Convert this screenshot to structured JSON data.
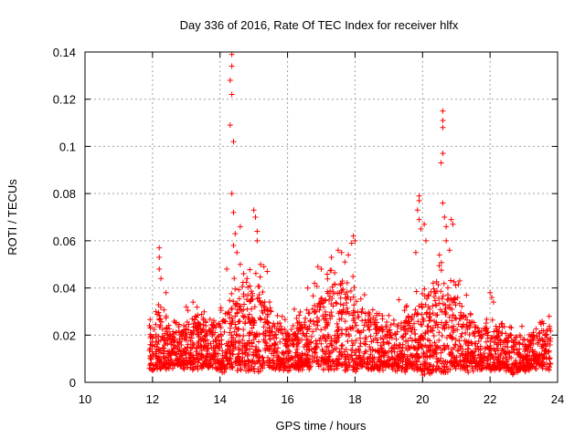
{
  "chart_data": {
    "type": "scatter",
    "title": "Day 336 of 2016, Rate Of TEC Index for receiver hlfx",
    "xlabel": "GPS time / hours",
    "ylabel": "ROTI / TECUs",
    "xlim": [
      10,
      24
    ],
    "ylim": [
      0,
      0.14
    ],
    "xticks": [
      "10",
      "12",
      "14",
      "16",
      "18",
      "20",
      "22",
      "24"
    ],
    "yticks": [
      "0",
      "0.02",
      "0.04",
      "0.06",
      "0.08",
      "0.1",
      "0.12",
      "0.14"
    ],
    "grid": true,
    "marker": "+",
    "color": "#ff0000",
    "series": [
      {
        "name": "ROTI",
        "envelope": {
          "x": [
            11.9,
            12.0,
            12.2,
            12.5,
            12.8,
            13.0,
            13.3,
            13.6,
            14.0,
            14.2,
            14.4,
            14.6,
            14.9,
            15.2,
            15.5,
            15.8,
            16.1,
            16.4,
            16.7,
            17.0,
            17.3,
            17.6,
            17.9,
            18.2,
            18.5,
            18.8,
            19.1,
            19.4,
            19.7,
            20.0,
            20.3,
            20.6,
            20.9,
            21.2,
            21.5,
            21.8,
            22.1,
            22.4,
            22.7,
            23.0,
            23.3,
            23.6,
            23.8
          ],
          "low": [
            0.006,
            0.004,
            0.005,
            0.005,
            0.006,
            0.005,
            0.005,
            0.006,
            0.004,
            0.004,
            0.004,
            0.004,
            0.004,
            0.004,
            0.005,
            0.005,
            0.004,
            0.005,
            0.005,
            0.004,
            0.004,
            0.004,
            0.004,
            0.005,
            0.005,
            0.005,
            0.005,
            0.004,
            0.004,
            0.003,
            0.003,
            0.003,
            0.004,
            0.004,
            0.004,
            0.005,
            0.005,
            0.005,
            0.003,
            0.004,
            0.005,
            0.005,
            0.005
          ],
          "high": [
            0.031,
            0.026,
            0.034,
            0.028,
            0.026,
            0.031,
            0.033,
            0.03,
            0.031,
            0.036,
            0.045,
            0.046,
            0.048,
            0.045,
            0.033,
            0.029,
            0.026,
            0.031,
            0.038,
            0.046,
            0.048,
            0.05,
            0.047,
            0.04,
            0.033,
            0.029,
            0.028,
            0.031,
            0.036,
            0.043,
            0.048,
            0.052,
            0.047,
            0.038,
            0.03,
            0.027,
            0.027,
            0.026,
            0.024,
            0.024,
            0.025,
            0.026,
            0.027
          ]
        },
        "spikes": [
          {
            "x": 12.2,
            "y": 0.057
          },
          {
            "x": 12.2,
            "y": 0.053
          },
          {
            "x": 12.2,
            "y": 0.048
          },
          {
            "x": 12.25,
            "y": 0.044
          },
          {
            "x": 12.1,
            "y": 0.03
          },
          {
            "x": 12.4,
            "y": 0.038
          },
          {
            "x": 14.35,
            "y": 0.139
          },
          {
            "x": 14.35,
            "y": 0.134
          },
          {
            "x": 14.3,
            "y": 0.128
          },
          {
            "x": 14.35,
            "y": 0.122
          },
          {
            "x": 14.3,
            "y": 0.109
          },
          {
            "x": 14.4,
            "y": 0.102
          },
          {
            "x": 14.35,
            "y": 0.08
          },
          {
            "x": 14.4,
            "y": 0.072
          },
          {
            "x": 14.45,
            "y": 0.063
          },
          {
            "x": 14.4,
            "y": 0.058
          },
          {
            "x": 14.5,
            "y": 0.055
          },
          {
            "x": 14.2,
            "y": 0.048
          },
          {
            "x": 14.6,
            "y": 0.05
          },
          {
            "x": 14.7,
            "y": 0.046
          },
          {
            "x": 14.8,
            "y": 0.044
          },
          {
            "x": 15.0,
            "y": 0.073
          },
          {
            "x": 15.05,
            "y": 0.07
          },
          {
            "x": 15.1,
            "y": 0.064
          },
          {
            "x": 15.1,
            "y": 0.06
          },
          {
            "x": 15.2,
            "y": 0.05
          },
          {
            "x": 15.3,
            "y": 0.049
          },
          {
            "x": 15.4,
            "y": 0.047
          },
          {
            "x": 14.6,
            "y": 0.066
          },
          {
            "x": 16.9,
            "y": 0.049
          },
          {
            "x": 17.0,
            "y": 0.048
          },
          {
            "x": 17.3,
            "y": 0.053
          },
          {
            "x": 17.5,
            "y": 0.056
          },
          {
            "x": 17.6,
            "y": 0.055
          },
          {
            "x": 17.8,
            "y": 0.054
          },
          {
            "x": 17.9,
            "y": 0.059
          },
          {
            "x": 17.95,
            "y": 0.062
          },
          {
            "x": 18.0,
            "y": 0.06
          },
          {
            "x": 17.7,
            "y": 0.051
          },
          {
            "x": 16.8,
            "y": 0.042
          },
          {
            "x": 16.6,
            "y": 0.04
          },
          {
            "x": 19.9,
            "y": 0.079
          },
          {
            "x": 19.9,
            "y": 0.077
          },
          {
            "x": 19.85,
            "y": 0.073
          },
          {
            "x": 19.9,
            "y": 0.069
          },
          {
            "x": 19.95,
            "y": 0.065
          },
          {
            "x": 20.1,
            "y": 0.06
          },
          {
            "x": 20.05,
            "y": 0.067
          },
          {
            "x": 19.8,
            "y": 0.055
          },
          {
            "x": 20.6,
            "y": 0.115
          },
          {
            "x": 20.6,
            "y": 0.111
          },
          {
            "x": 20.6,
            "y": 0.108
          },
          {
            "x": 20.6,
            "y": 0.097
          },
          {
            "x": 20.55,
            "y": 0.093
          },
          {
            "x": 20.6,
            "y": 0.076
          },
          {
            "x": 20.65,
            "y": 0.07
          },
          {
            "x": 20.7,
            "y": 0.066
          },
          {
            "x": 20.85,
            "y": 0.069
          },
          {
            "x": 20.9,
            "y": 0.067
          },
          {
            "x": 20.7,
            "y": 0.06
          },
          {
            "x": 20.8,
            "y": 0.056
          },
          {
            "x": 20.5,
            "y": 0.054
          },
          {
            "x": 21.1,
            "y": 0.043
          },
          {
            "x": 21.3,
            "y": 0.037
          },
          {
            "x": 22.0,
            "y": 0.038
          },
          {
            "x": 22.1,
            "y": 0.034
          },
          {
            "x": 22.05,
            "y": 0.036
          },
          {
            "x": 19.3,
            "y": 0.035
          },
          {
            "x": 13.2,
            "y": 0.034
          },
          {
            "x": 13.0,
            "y": 0.032
          },
          {
            "x": 16.2,
            "y": 0.031
          },
          {
            "x": 23.75,
            "y": 0.028
          }
        ]
      }
    ]
  }
}
